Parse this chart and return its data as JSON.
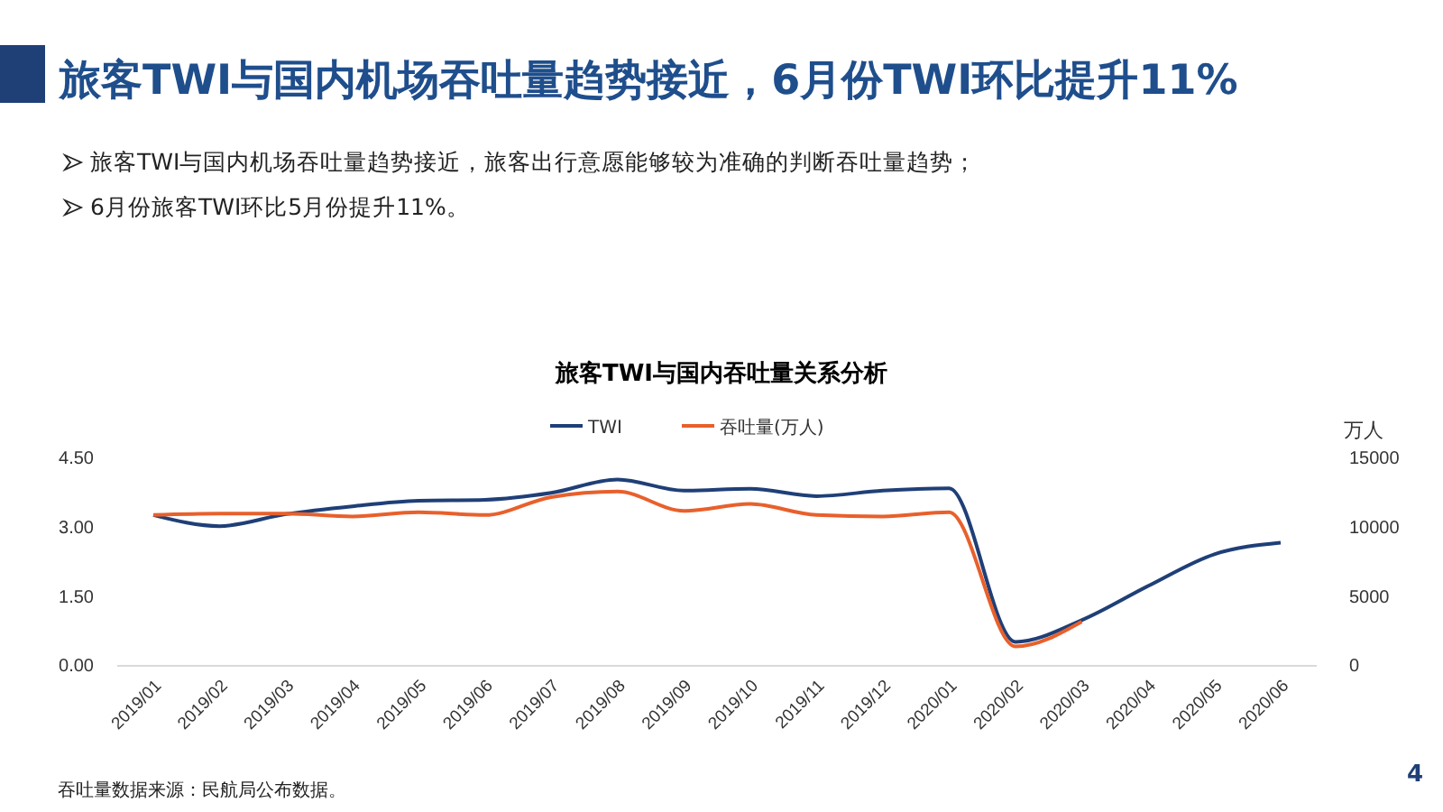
{
  "chart_data": {
    "type": "line",
    "title": "旅客TWI与国内机场吞吐量趋势接近，6月份TWI环比提升11%",
    "subtitle": "旅客TWI与国内吞吐量关系分析",
    "y2label": "万人",
    "categories": [
      "2019/01",
      "2019/02",
      "2019/03",
      "2019/04",
      "2019/05",
      "2019/06",
      "2019/07",
      "2019/08",
      "2019/09",
      "2019/10",
      "2019/11",
      "2019/12",
      "2020/01",
      "2020/02",
      "2020/03",
      "2020/04",
      "2020/05",
      "2020/06"
    ],
    "series": [
      {
        "name": "TWI",
        "color": "#1f3f77",
        "values": [
          3.27,
          3.03,
          3.29,
          3.46,
          3.58,
          3.6,
          3.75,
          4.04,
          3.8,
          3.84,
          3.68,
          3.8,
          3.85,
          0.52,
          0.99,
          1.73,
          2.42,
          2.67
        ]
      },
      {
        "name": "吞吐量(万人)",
        "color": "#e8602c",
        "axis": "y2",
        "values": [
          10900,
          11000,
          11000,
          10800,
          11100,
          10900,
          12200,
          12600,
          11200,
          11700,
          10900,
          10800,
          11100,
          1400,
          3200,
          null,
          null,
          null
        ]
      }
    ],
    "ylim": [
      0,
      4.5
    ],
    "yticks": [
      {
        "value": 0,
        "label": "0.00"
      },
      {
        "value": 1.5,
        "label": "1.50"
      },
      {
        "value": 3,
        "label": "3.00"
      },
      {
        "value": 4.5,
        "label": "4.50"
      }
    ],
    "y2lim": [
      0,
      15000
    ],
    "y2ticks": [
      0,
      5000,
      10000,
      15000
    ],
    "legend": "top",
    "grid": false,
    "annotations": [
      "旅客TWI与国内机场吞吐量趋势接近，旅客出行意愿能够较为准确的判断吞吐量趋势；",
      "6月份旅客TWI环比5月份提升11%。",
      "吞吐量数据来源：民航局公布数据。",
      "4"
    ]
  }
}
